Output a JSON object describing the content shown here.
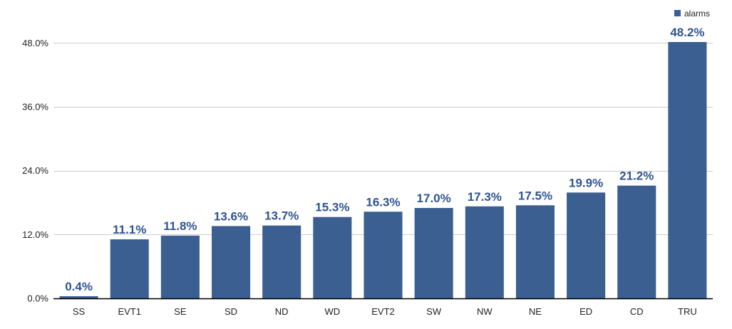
{
  "chart_data": {
    "type": "bar",
    "categories": [
      "SS",
      "EVT1",
      "SE",
      "SD",
      "ND",
      "WD",
      "EVT2",
      "SW",
      "NW",
      "NE",
      "ED",
      "CD",
      "TRU"
    ],
    "series": [
      {
        "name": "alarms",
        "values": [
          0.4,
          11.1,
          11.8,
          13.6,
          13.7,
          15.3,
          16.3,
          17.0,
          17.3,
          17.5,
          19.9,
          21.2,
          48.2
        ],
        "labels": [
          "0.4%",
          "11.1%",
          "11.8%",
          "13.6%",
          "13.7%",
          "15.3%",
          "16.3%",
          "17.0%",
          "17.3%",
          "17.5%",
          "19.9%",
          "21.2%",
          "48.2%"
        ]
      }
    ],
    "yticks": [
      0,
      12,
      24,
      36,
      48
    ],
    "ytick_labels": [
      "0.0%",
      "12.0%",
      "24.0%",
      "36.0%",
      "48.0%"
    ],
    "ylim": [
      0,
      48.2
    ],
    "title": "",
    "xlabel": "",
    "ylabel": "",
    "grid": true,
    "legend_position": "top-right",
    "colors": {
      "bar": "#3b5f91",
      "data_label": "#2f5490",
      "grid": "#cccccc",
      "axis": "#000000"
    }
  }
}
